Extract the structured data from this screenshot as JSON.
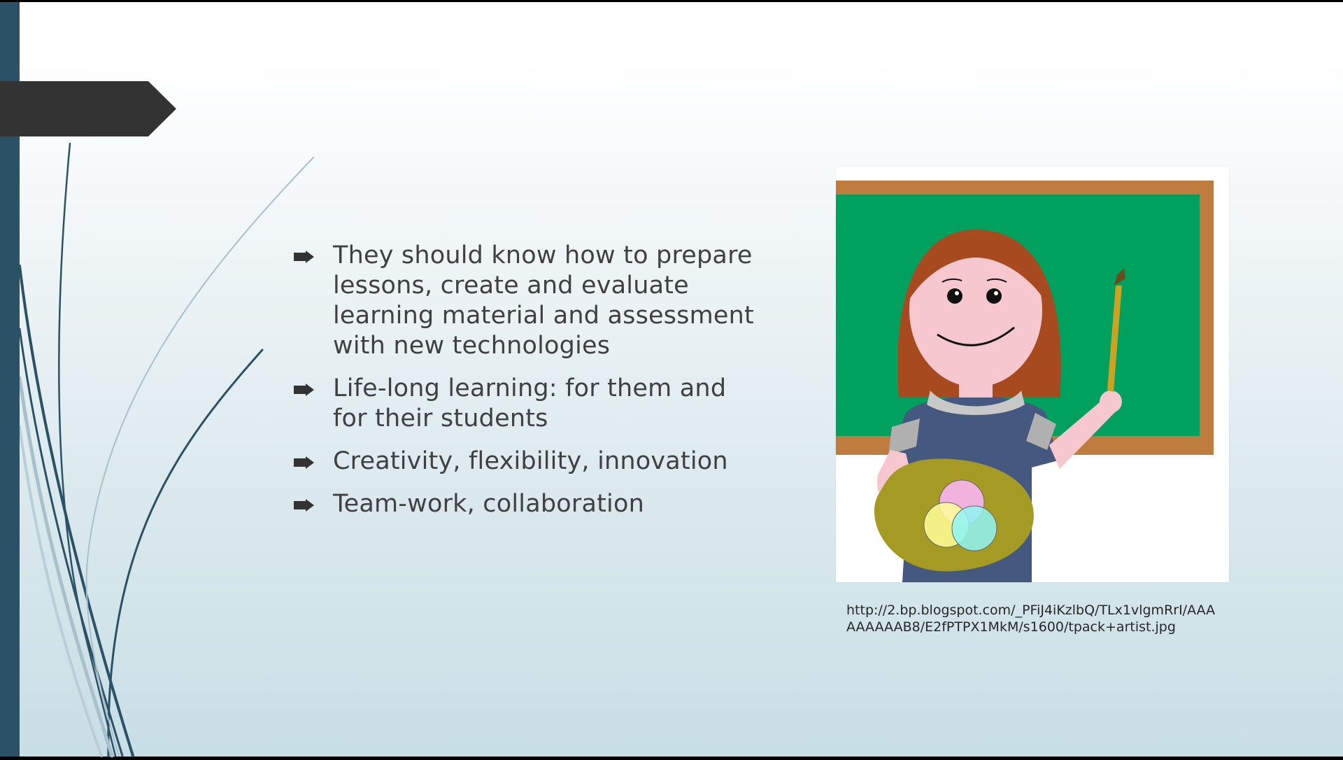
{
  "slide": {
    "bullets": [
      {
        "text": "They should know how to prepare lessons, create and evaluate learning material and assessment with new technologies"
      },
      {
        "text": "Life-long learning: for them and for their students"
      },
      {
        "text": "Creativity, flexibility, innovation"
      },
      {
        "text": "Team-work, collaboration"
      }
    ],
    "image_caption": "http://2.bp.blogspot.com/_PFiJ4iKzlbQ/TLx1vlgmRrI/AAAAAAAAAB8/E2fPTPX1MkM/s1600/tpack+artist.jpg",
    "image_subject": "teacher-artist-illustration"
  },
  "colors": {
    "band": "#2b5166",
    "title_tab": "#333333",
    "text": "#404040",
    "chalkboard": "#00a05e",
    "board_frame": "#c07c3e"
  },
  "icons": {
    "bullet": "arrow-bullet-icon"
  }
}
